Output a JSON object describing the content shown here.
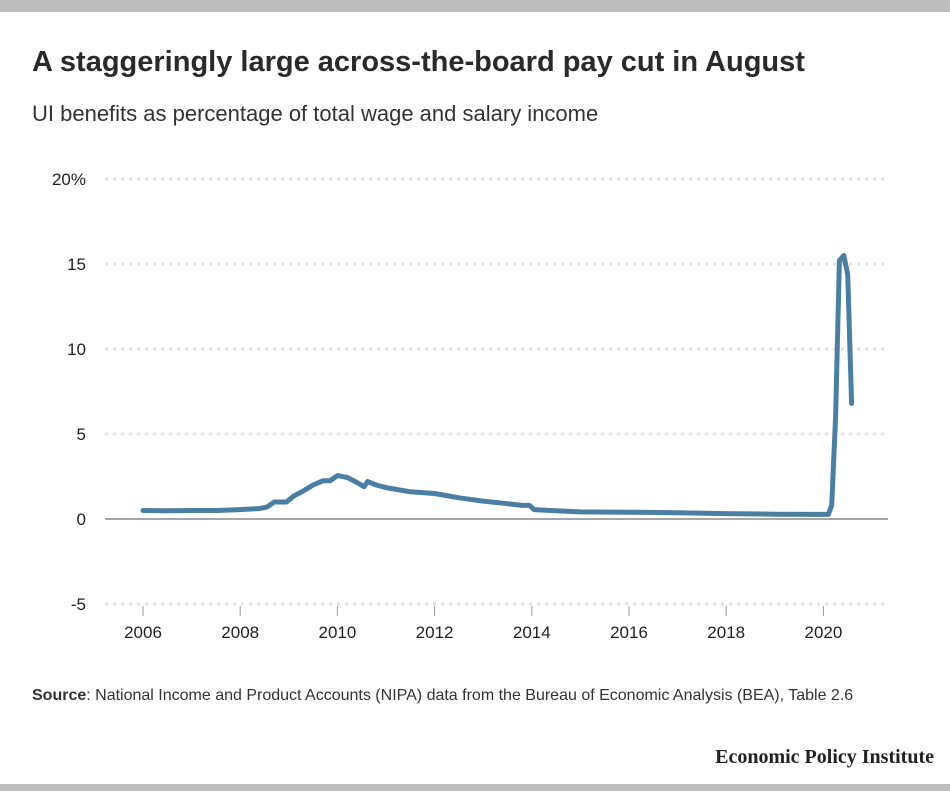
{
  "title": "A staggeringly large across-the-board pay cut in August",
  "subtitle": "UI benefits as percentage of total wage and salary income",
  "source_label": "Source",
  "source_text": ": National Income and Product Accounts (NIPA) data from the Bureau of Economic Analysis (BEA), Table 2.6",
  "logo": "Economic Policy Institute",
  "chart_data": {
    "type": "line",
    "title": "A staggeringly large across-the-board pay cut in August",
    "xlabel": "",
    "ylabel": "",
    "xlim": [
      2005.5,
      2021.3
    ],
    "ylim": [
      -5,
      20
    ],
    "xticks": [
      2006,
      2008,
      2010,
      2012,
      2014,
      2016,
      2018,
      2020
    ],
    "xtick_labels": [
      "2006",
      "2008",
      "2010",
      "2012",
      "2014",
      "2016",
      "2018",
      "2020"
    ],
    "yticks": [
      -5,
      0,
      5,
      10,
      15,
      20
    ],
    "ytick_labels": [
      "-5",
      "0",
      "5",
      "10",
      "15",
      "20%"
    ],
    "grid": "horizontal dotted",
    "line_color": "#4a7fa3",
    "series": [
      {
        "x": [
          2006.0,
          2006.5,
          2007.0,
          2007.5,
          2008.0,
          2008.4,
          2008.55,
          2008.7,
          2008.95,
          2009.1,
          2009.3,
          2009.5,
          2009.7,
          2009.85,
          2010.0,
          2010.2,
          2010.4,
          2010.55,
          2010.62,
          2010.8,
          2011.0,
          2011.5,
          2012.0,
          2012.5,
          2013.0,
          2013.5,
          2013.8,
          2013.95,
          2014.05,
          2014.5,
          2015.0,
          2016.0,
          2017.0,
          2018.0,
          2019.0,
          2020.0,
          2020.1,
          2020.17,
          2020.25,
          2020.33,
          2020.42,
          2020.5,
          2020.58
        ],
        "y": [
          0.5,
          0.48,
          0.5,
          0.5,
          0.55,
          0.62,
          0.7,
          1.0,
          1.0,
          1.35,
          1.65,
          2.0,
          2.25,
          2.25,
          2.55,
          2.45,
          2.15,
          1.9,
          2.2,
          2.0,
          1.85,
          1.6,
          1.5,
          1.25,
          1.05,
          0.9,
          0.8,
          0.8,
          0.55,
          0.48,
          0.42,
          0.4,
          0.37,
          0.32,
          0.28,
          0.27,
          0.27,
          0.8,
          6.0,
          15.2,
          15.5,
          14.4,
          6.8
        ]
      }
    ]
  }
}
